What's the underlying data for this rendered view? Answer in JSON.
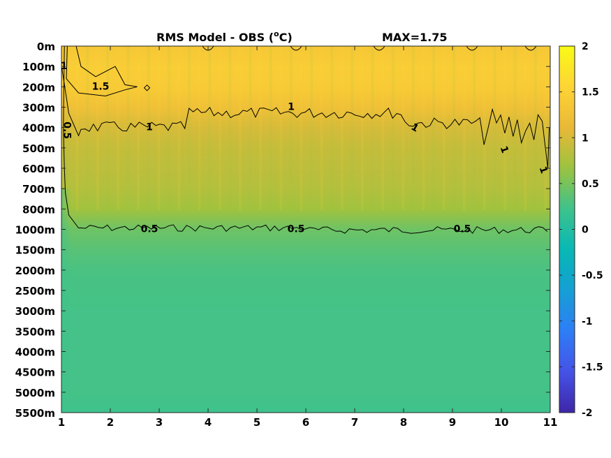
{
  "chart_data": {
    "type": "heatmap",
    "title_main": "RMS Model - OBS (",
    "title_sup": "o",
    "title_unit": "C)",
    "title_max": "MAX=1.75",
    "x_ticks": [
      1,
      2,
      3,
      4,
      5,
      6,
      7,
      8,
      9,
      10,
      11
    ],
    "xlim": [
      1,
      11
    ],
    "y_tick_labels": [
      "0m",
      "100m",
      "200m",
      "300m",
      "400m",
      "500m",
      "600m",
      "700m",
      "800m",
      "1000m",
      "1500m",
      "2000m",
      "2500m",
      "3000m",
      "3500m",
      "4000m",
      "4500m",
      "5000m",
      "5500m"
    ],
    "colorbar_ticks": [
      "2",
      "1.5",
      "1",
      "0.5",
      "0",
      "-0.5",
      "-1",
      "-1.5",
      "-2"
    ],
    "colorbar_range": [
      -2,
      2
    ],
    "colormap": "parula",
    "colormap_stops": [
      "#3e26a8",
      "#4653e7",
      "#2e7ef6",
      "#169fd4",
      "#07b8b5",
      "#3ec28c",
      "#9bc33f",
      "#eab837",
      "#fed436",
      "#f9fb15"
    ],
    "depth_profile": [
      1.35,
      1.45,
      1.42,
      1.25,
      1.0,
      0.9,
      0.85,
      0.8,
      0.7,
      0.45,
      0.35,
      0.28,
      0.26,
      0.25,
      0.25,
      0.25,
      0.25,
      0.25,
      0.22
    ],
    "contour_labels": [
      {
        "text": "1.5",
        "level": 1.5,
        "x": 1.8,
        "depth": "200m"
      },
      {
        "text": "1",
        "level": 1,
        "x": 1.05,
        "depth": "100m"
      },
      {
        "text": "1",
        "level": 1,
        "x": 2.8,
        "depth": "400m"
      },
      {
        "text": "1",
        "level": 1,
        "x": 5.7,
        "depth": "300m"
      },
      {
        "text": "1",
        "level": 1,
        "x": 8.2,
        "depth": "400m"
      },
      {
        "text": "1",
        "level": 1,
        "x": 10.0,
        "depth": "500m"
      },
      {
        "text": "1",
        "level": 1,
        "x": 10.8,
        "depth": "600m"
      },
      {
        "text": "0.5",
        "level": 0.5,
        "x": 1.05,
        "depth": "400m"
      },
      {
        "text": "0.5",
        "level": 0.5,
        "x": 2.8,
        "depth": "1000m"
      },
      {
        "text": "0.5",
        "level": 0.5,
        "x": 5.8,
        "depth": "1000m"
      },
      {
        "text": "0.5",
        "level": 0.5,
        "x": 9.2,
        "depth": "1000m"
      }
    ]
  }
}
